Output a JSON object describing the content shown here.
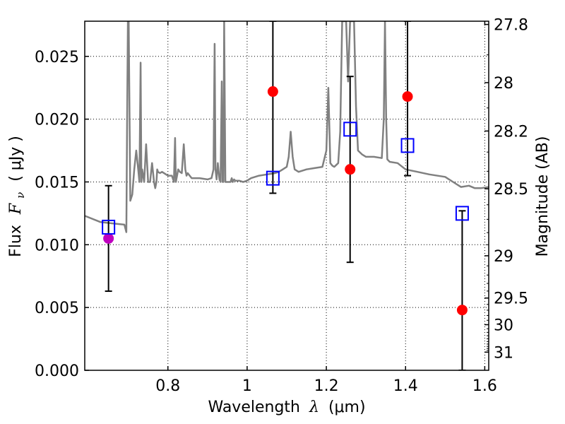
{
  "chart_data": {
    "type": "scatter",
    "xlabel": "Wavelength",
    "xlabel_symbol": "λ",
    "xlabel_unit": "(μm)",
    "ylabel": "Flux",
    "ylabel_symbol": "F",
    "ylabel_subscript": "ν",
    "ylabel_unit": "( μJy )",
    "y2label": "Magnitude (AB)",
    "xlim": [
      0.59,
      1.61
    ],
    "ylim": [
      0.0,
      0.0278
    ],
    "grid": true,
    "x_ticks": [
      {
        "value": 0.8,
        "label": "0.8"
      },
      {
        "value": 1.0,
        "label": "1"
      },
      {
        "value": 1.2,
        "label": "1.2"
      },
      {
        "value": 1.4,
        "label": "1.4"
      },
      {
        "value": 1.6,
        "label": "1.6"
      }
    ],
    "y_ticks": [
      {
        "value": 0.0,
        "label": "0.000"
      },
      {
        "value": 0.005,
        "label": "0.005"
      },
      {
        "value": 0.01,
        "label": "0.010"
      },
      {
        "value": 0.015,
        "label": "0.015"
      },
      {
        "value": 0.02,
        "label": "0.020"
      },
      {
        "value": 0.025,
        "label": "0.025"
      }
    ],
    "y2_ticks": [
      {
        "value": 27.8,
        "label": "27.8"
      },
      {
        "value": 28.0,
        "label": "28"
      },
      {
        "value": 28.2,
        "label": "28.2"
      },
      {
        "value": 28.5,
        "label": "28.5"
      },
      {
        "value": 29.0,
        "label": "29"
      },
      {
        "value": 29.5,
        "label": "29.5"
      },
      {
        "value": 30.0,
        "label": "30"
      },
      {
        "value": 31.0,
        "label": "31"
      }
    ],
    "series": [
      {
        "type": "line",
        "color": "#808080",
        "x": [
          0.59,
          0.63,
          0.66,
          0.69,
          0.695,
          0.697,
          0.699,
          0.701,
          0.705,
          0.71,
          0.715,
          0.72,
          0.725,
          0.728,
          0.731,
          0.733,
          0.735,
          0.74,
          0.745,
          0.75,
          0.755,
          0.76,
          0.765,
          0.768,
          0.771,
          0.773,
          0.775,
          0.78,
          0.785,
          0.8,
          0.81,
          0.815,
          0.818,
          0.82,
          0.823,
          0.826,
          0.83,
          0.835,
          0.84,
          0.844,
          0.847,
          0.85,
          0.855,
          0.86,
          0.88,
          0.9,
          0.91,
          0.915,
          0.918,
          0.92,
          0.923,
          0.926,
          0.93,
          0.933,
          0.936,
          0.938,
          0.94,
          0.942,
          0.945,
          0.95,
          0.955,
          0.958,
          0.961,
          0.964,
          0.967,
          0.97,
          0.98,
          0.99,
          1.0,
          1.01,
          1.03,
          1.05,
          1.07,
          1.08,
          1.09,
          1.1,
          1.105,
          1.11,
          1.115,
          1.12,
          1.13,
          1.15,
          1.17,
          1.19,
          1.2,
          1.205,
          1.21,
          1.215,
          1.22,
          1.23,
          1.235,
          1.24,
          1.245,
          1.25,
          1.255,
          1.26,
          1.265,
          1.27,
          1.275,
          1.28,
          1.29,
          1.3,
          1.32,
          1.34,
          1.345,
          1.348,
          1.351,
          1.354,
          1.36,
          1.38,
          1.4,
          1.43,
          1.46,
          1.5,
          1.52,
          1.54,
          1.56,
          1.575,
          1.59,
          1.61
        ],
        "y": [
          0.0123,
          0.0118,
          0.0117,
          0.0116,
          0.011,
          0.02,
          0.0278,
          0.0278,
          0.0135,
          0.014,
          0.016,
          0.0175,
          0.016,
          0.015,
          0.0245,
          0.015,
          0.016,
          0.015,
          0.018,
          0.015,
          0.015,
          0.0165,
          0.015,
          0.0145,
          0.015,
          0.016,
          0.0158,
          0.0157,
          0.0158,
          0.0155,
          0.0155,
          0.015,
          0.0185,
          0.015,
          0.0155,
          0.016,
          0.0158,
          0.0157,
          0.018,
          0.016,
          0.0155,
          0.0157,
          0.0155,
          0.0153,
          0.0153,
          0.0152,
          0.0153,
          0.016,
          0.026,
          0.016,
          0.0152,
          0.0165,
          0.0152,
          0.015,
          0.023,
          0.015,
          0.015,
          0.0278,
          0.015,
          0.015,
          0.015,
          0.015,
          0.0153,
          0.015,
          0.0152,
          0.0151,
          0.0151,
          0.015,
          0.0151,
          0.0153,
          0.0155,
          0.0156,
          0.0157,
          0.0158,
          0.016,
          0.0162,
          0.017,
          0.019,
          0.017,
          0.016,
          0.0158,
          0.016,
          0.0161,
          0.0162,
          0.0175,
          0.0225,
          0.0165,
          0.0163,
          0.0162,
          0.0165,
          0.019,
          0.0278,
          0.0278,
          0.0278,
          0.023,
          0.0278,
          0.0278,
          0.0278,
          0.021,
          0.0175,
          0.0172,
          0.017,
          0.017,
          0.0169,
          0.02,
          0.0278,
          0.02,
          0.0168,
          0.0166,
          0.0165,
          0.016,
          0.0158,
          0.0156,
          0.0154,
          0.015,
          0.0146,
          0.0147,
          0.0145,
          0.0145,
          0.0146
        ]
      },
      {
        "type": "points",
        "marker": "circle",
        "color": "#ff0000",
        "x": [
          1.065,
          1.26,
          1.405,
          1.543
        ],
        "y": [
          0.0222,
          0.016,
          0.0218,
          0.0048
        ]
      },
      {
        "type": "points",
        "marker": "circle",
        "color": "#bf00bf",
        "x": [
          0.65
        ],
        "y": [
          0.0105
        ]
      },
      {
        "type": "points",
        "marker": "open-square",
        "color": "#0000ff",
        "x": [
          0.65,
          1.065,
          1.26,
          1.405,
          1.543
        ],
        "y": [
          0.0114,
          0.0153,
          0.0192,
          0.0179,
          0.0125
        ]
      },
      {
        "type": "errorbars",
        "color": "#000000",
        "x": [
          0.65,
          1.065,
          1.26,
          1.405,
          1.543
        ],
        "y_low": [
          0.0063,
          0.0141,
          0.0086,
          0.0155,
          0.0
        ],
        "y_high": [
          0.0147,
          0.0278,
          0.0234,
          0.0278,
          0.0127
        ]
      }
    ]
  }
}
